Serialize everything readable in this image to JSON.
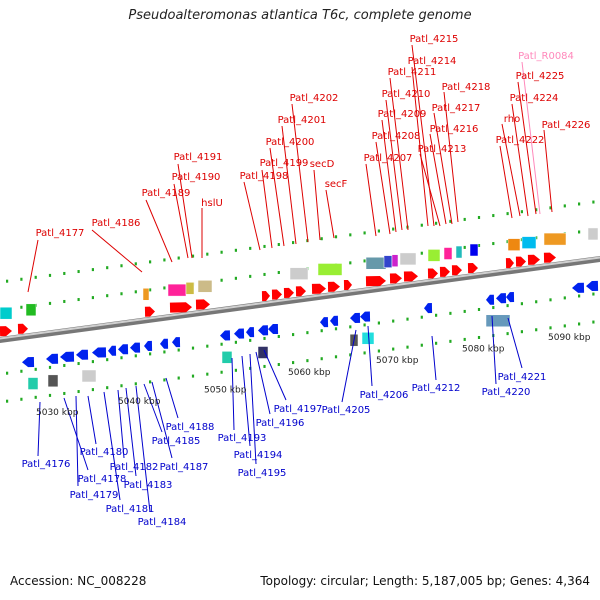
{
  "title": "Pseudoalteromonas atlantica T6c, complete genome",
  "footer": {
    "accession": "Accession: NC_008228",
    "info": "Topology: circular; Length: 5,187,005 bp; Genes: 4,364"
  },
  "colors": {
    "top_label": "#dd0000",
    "bottom_label": "#0000cc",
    "rna_label": "#ff88bb",
    "forward_gene": "#ff0000",
    "reverse_gene": "#0022ee",
    "axis": "#888888",
    "tick": "#22aa22"
  },
  "scale": {
    "unit": "kbp",
    "ticks": [
      {
        "text": "5030 kbp"
      },
      {
        "text": "5040 kbp"
      },
      {
        "text": "5050 kbp"
      },
      {
        "text": "5060 kbp"
      },
      {
        "text": "5070 kbp"
      },
      {
        "text": "5080 kbp"
      },
      {
        "text": "5090 kbp"
      }
    ]
  },
  "top_labels": [
    {
      "text": "Patl_4177",
      "kind": "gene"
    },
    {
      "text": "Patl_4186",
      "kind": "gene"
    },
    {
      "text": "Patl_4189",
      "kind": "gene"
    },
    {
      "text": "Patl_4190",
      "kind": "gene"
    },
    {
      "text": "Patl_4191",
      "kind": "gene"
    },
    {
      "text": "hslU",
      "kind": "gene"
    },
    {
      "text": "Patl_4198",
      "kind": "gene"
    },
    {
      "text": "Patl_4199",
      "kind": "gene"
    },
    {
      "text": "Patl_4200",
      "kind": "gene"
    },
    {
      "text": "Patl_4201",
      "kind": "gene"
    },
    {
      "text": "Patl_4202",
      "kind": "gene"
    },
    {
      "text": "secD",
      "kind": "gene"
    },
    {
      "text": "secF",
      "kind": "gene"
    },
    {
      "text": "Patl_4207",
      "kind": "gene"
    },
    {
      "text": "Patl_4208",
      "kind": "gene"
    },
    {
      "text": "Patl_4209",
      "kind": "gene"
    },
    {
      "text": "Patl_4210",
      "kind": "gene"
    },
    {
      "text": "Patl_4211",
      "kind": "gene"
    },
    {
      "text": "Patl_4214",
      "kind": "gene"
    },
    {
      "text": "Patl_4215",
      "kind": "gene"
    },
    {
      "text": "Patl_4213",
      "kind": "gene"
    },
    {
      "text": "Patl_4216",
      "kind": "gene"
    },
    {
      "text": "Patl_4217",
      "kind": "gene"
    },
    {
      "text": "Patl_4218",
      "kind": "gene"
    },
    {
      "text": "Patl_4222",
      "kind": "gene"
    },
    {
      "text": "rho",
      "kind": "gene"
    },
    {
      "text": "Patl_4224",
      "kind": "gene"
    },
    {
      "text": "Patl_4225",
      "kind": "gene"
    },
    {
      "text": "Patl_R0084",
      "kind": "rna"
    },
    {
      "text": "Patl_4226",
      "kind": "gene"
    }
  ],
  "bottom_labels": [
    {
      "text": "Patl_4176"
    },
    {
      "text": "Patl_4178"
    },
    {
      "text": "Patl_4179"
    },
    {
      "text": "Patl_4180"
    },
    {
      "text": "Patl_4181"
    },
    {
      "text": "Patl_4182"
    },
    {
      "text": "Patl_4183"
    },
    {
      "text": "Patl_4184"
    },
    {
      "text": "Patl_4185"
    },
    {
      "text": "Patl_4187"
    },
    {
      "text": "Patl_4188"
    },
    {
      "text": "Patl_4193"
    },
    {
      "text": "Patl_4194"
    },
    {
      "text": "Patl_4195"
    },
    {
      "text": "Patl_4196"
    },
    {
      "text": "Patl_4197"
    },
    {
      "text": "Patl_4205"
    },
    {
      "text": "Patl_4206"
    },
    {
      "text": "Patl_4212"
    },
    {
      "text": "Patl_4220"
    },
    {
      "text": "Patl_4221"
    }
  ]
}
